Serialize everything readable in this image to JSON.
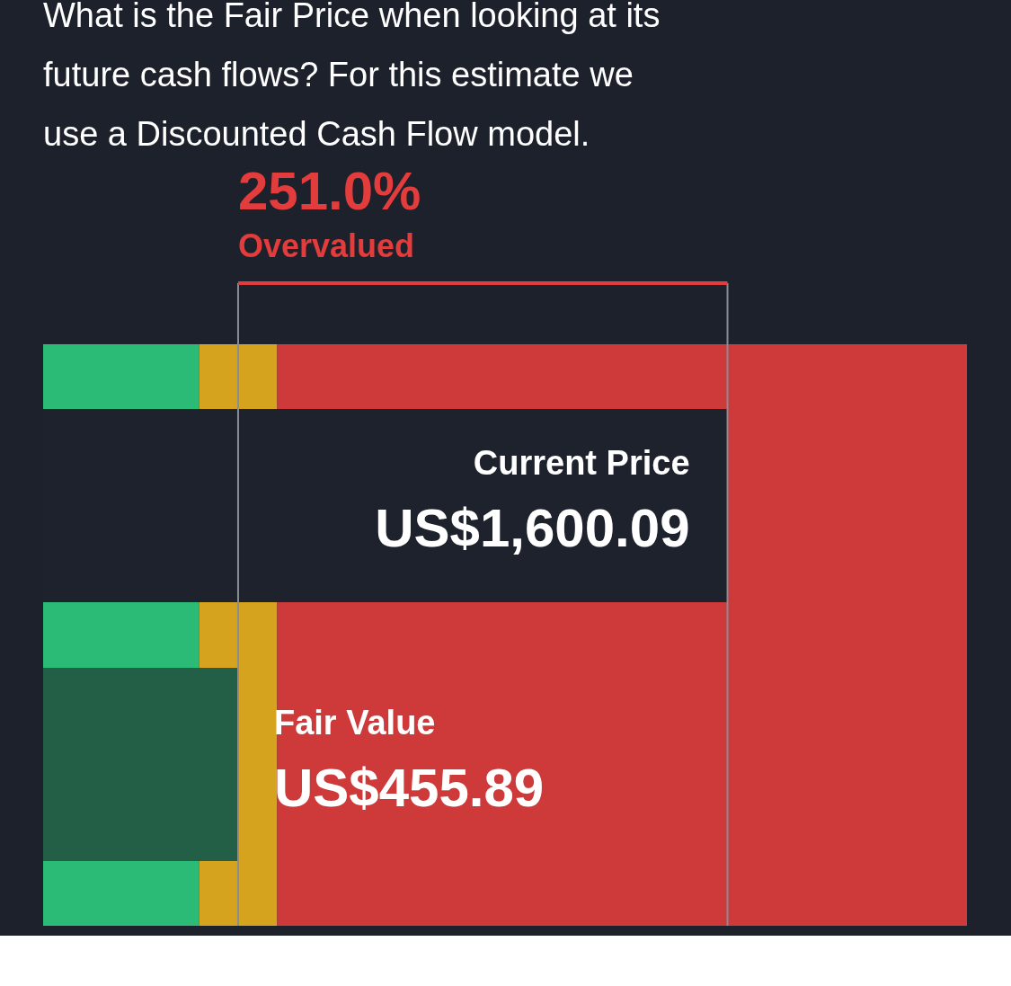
{
  "chart_data": {
    "type": "bar",
    "orientation": "horizontal",
    "title": "What is the Fair Price when looking at its future cash flows? For this estimate we use a Discounted Cash Flow model.",
    "categories": [
      "Current Price",
      "Fair Value"
    ],
    "values": [
      1600.09,
      455.89
    ],
    "colors": [
      "#1e222c",
      "#235e47"
    ],
    "value_labels": [
      "US$1,600.09",
      "US$455.89"
    ],
    "xlim": [
      0,
      2160
    ],
    "tick_labels": false,
    "bands": [
      {
        "axis": "x",
        "from": 0,
        "to": 364.7,
        "color": "#2ecc80"
      },
      {
        "axis": "x",
        "from": 364.7,
        "to": 547.1,
        "color": "#ebb11d"
      },
      {
        "axis": "x",
        "from": 547.1,
        "to": 2160,
        "color": "#e23c3c"
      }
    ],
    "ref_lines": [
      {
        "axis": "x",
        "value": 455.89,
        "color": "#8a8d94"
      },
      {
        "axis": "x",
        "value": 1600.09,
        "color": "#8a8d94"
      }
    ],
    "annotations": [
      "251.0%",
      "Overvalued"
    ]
  }
}
